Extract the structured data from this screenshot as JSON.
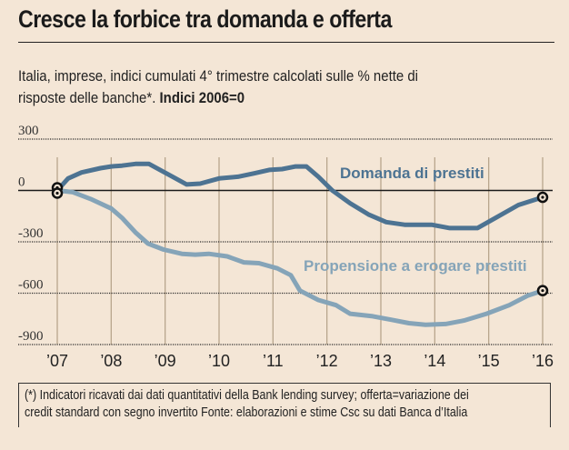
{
  "title": "Cresce la forbice tra domanda e offerta",
  "subtitle": {
    "line1": "Italia, imprese, indici cumulati 4° trimestre calcolati sulle % nette di",
    "line2_plain": " risposte delle banche*. ",
    "line2_bold": "Indici 2006=0"
  },
  "footnote": {
    "line1": "(*) Indicatori ricavati dai dati quantitativi della Bank lending survey; offerta=variazione dei",
    "line2": "credit standard con segno invertito    Fonte: elaborazioni e stime Csc su dati Banca d’Italia"
  },
  "colors": {
    "background": "#f4e6d6",
    "demand": "#4d7392",
    "supply": "#85a4b8",
    "grid": "#b8a58d",
    "axis": "#1a1a1a"
  },
  "chart_data": {
    "type": "line",
    "title": "Cresce la forbice tra domanda e offerta",
    "xlabel": "",
    "ylabel": "Indici 2006=0",
    "x_tick_labels": [
      "'07",
      "'08",
      "'09",
      "'10",
      "'11",
      "'12",
      "'13",
      "'14",
      "'15",
      "'16"
    ],
    "x_range": [
      2007,
      2016
    ],
    "y_ticks": [
      300,
      0,
      -300,
      -600,
      -900
    ],
    "y_tick_labels": [
      "300",
      "0",
      "-300",
      "-600",
      "-900"
    ],
    "ylim": [
      -900,
      300
    ],
    "grid": "horizontal dotted at 300, -300, -600, -900; vertical lines at each year",
    "series": [
      {
        "name": "Domanda di prestiti",
        "x": [
          2007.0,
          2007.2,
          2007.45,
          2007.8,
          2008.0,
          2008.2,
          2008.45,
          2008.7,
          2009.05,
          2009.4,
          2009.65,
          2010.0,
          2010.35,
          2010.65,
          2010.93,
          2011.17,
          2011.42,
          2011.62,
          2011.84,
          2012.1,
          2012.43,
          2012.77,
          2013.1,
          2013.44,
          2013.94,
          2014.28,
          2014.79,
          2015.13,
          2015.55,
          2016.0
        ],
        "values": [
          0,
          70,
          105,
          130,
          140,
          145,
          155,
          155,
          95,
          35,
          40,
          70,
          80,
          100,
          120,
          125,
          140,
          140,
          80,
          0,
          -75,
          -140,
          -185,
          -200,
          -200,
          -220,
          -220,
          -160,
          -85,
          -40
        ]
      },
      {
        "name": "Propensione a erogare prestiti",
        "x": [
          2007.0,
          2007.29,
          2007.62,
          2008.0,
          2008.2,
          2008.45,
          2008.68,
          2008.97,
          2009.31,
          2009.56,
          2009.81,
          2010.15,
          2010.46,
          2010.74,
          2011.08,
          2011.33,
          2011.5,
          2011.84,
          2012.17,
          2012.43,
          2012.85,
          2013.19,
          2013.52,
          2013.83,
          2014.2,
          2014.54,
          2014.96,
          2015.38,
          2015.72,
          2016.0
        ],
        "values": [
          0,
          -10,
          -50,
          -105,
          -160,
          -245,
          -310,
          -345,
          -370,
          -375,
          -370,
          -385,
          -420,
          -425,
          -455,
          -495,
          -585,
          -640,
          -670,
          -720,
          -735,
          -755,
          -775,
          -785,
          -780,
          -760,
          -720,
          -670,
          -615,
          -585
        ]
      }
    ],
    "annotations": [
      {
        "text": "Domanda di prestiti",
        "series": "Domanda di prestiti"
      },
      {
        "text": "Propensione a erogare prestiti",
        "series": "Propensione a erogare prestiti"
      }
    ],
    "markers": "circle markers at first and last point of each series",
    "legend": "inline labels"
  }
}
